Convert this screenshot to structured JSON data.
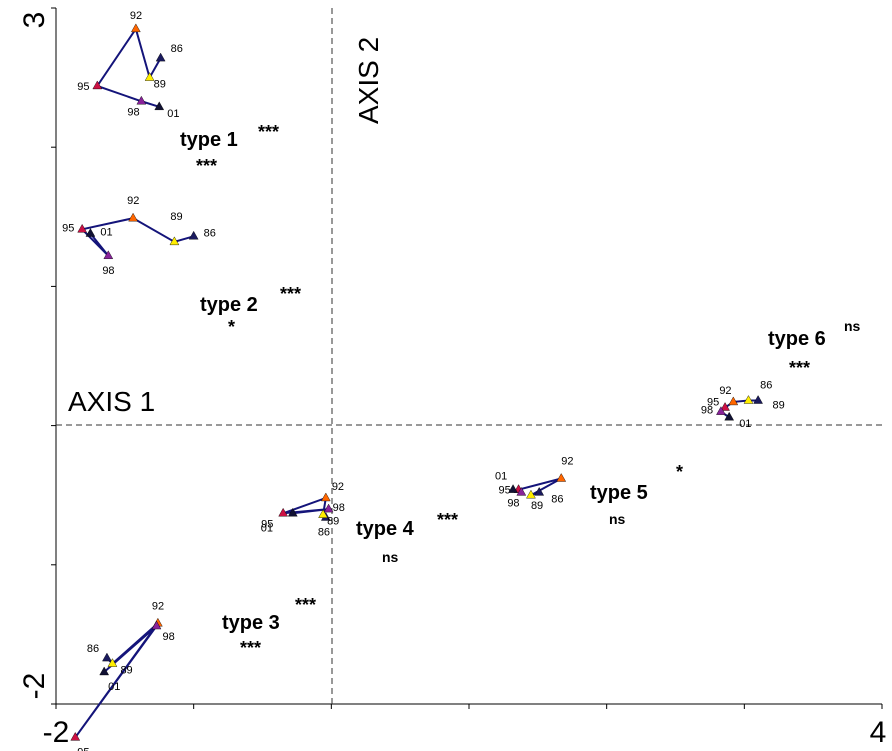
{
  "chart_data": {
    "type": "scatter",
    "title": "",
    "xlim": [
      -2,
      4
    ],
    "ylim": [
      -2,
      3
    ],
    "tick_labels": {
      "x_min": "-2",
      "x_max": "4",
      "y_min": "-2",
      "y_max": "3"
    },
    "axis_labels": {
      "axis1": "AXIS 1",
      "axis2": "AXIS 2"
    },
    "grid": false,
    "legend": "none",
    "colors": {
      "86": "#1a1a5e",
      "89": "#ffee00",
      "92": "#ff6600",
      "95": "#cc1144",
      "98": "#882299",
      "01": "#111133",
      "line": "#14147a"
    },
    "series": [
      {
        "points": [
          {
            "label": "86",
            "x": -1.24,
            "y": 2.64
          },
          {
            "label": "89",
            "x": -1.32,
            "y": 2.5
          },
          {
            "label": "92",
            "x": -1.42,
            "y": 2.85
          },
          {
            "label": "95",
            "x": -1.7,
            "y": 2.44
          },
          {
            "label": "98",
            "x": -1.38,
            "y": 2.33
          },
          {
            "label": "01",
            "x": -1.25,
            "y": 2.29
          }
        ],
        "name_text": "type 1",
        "sig1": "***",
        "sig2": "***"
      },
      {
        "points": [
          {
            "label": "86",
            "x": -1.0,
            "y": 1.36
          },
          {
            "label": "89",
            "x": -1.14,
            "y": 1.32
          },
          {
            "label": "92",
            "x": -1.44,
            "y": 1.49
          },
          {
            "label": "95",
            "x": -1.81,
            "y": 1.41
          },
          {
            "label": "98",
            "x": -1.62,
            "y": 1.22
          },
          {
            "label": "01",
            "x": -1.75,
            "y": 1.38
          }
        ],
        "name_text": "type 2",
        "sig1": "***",
        "sig2": "*"
      },
      {
        "points": [
          {
            "label": "86",
            "x": -1.63,
            "y": -1.67
          },
          {
            "label": "89",
            "x": -1.59,
            "y": -1.71
          },
          {
            "label": "92",
            "x": -1.26,
            "y": -1.42
          },
          {
            "label": "95",
            "x": -1.86,
            "y": -2.24
          },
          {
            "label": "98",
            "x": -1.27,
            "y": -1.44
          },
          {
            "label": "01",
            "x": -1.65,
            "y": -1.77
          }
        ],
        "name_text": "type 3",
        "sig1": "***",
        "sig2": "***"
      },
      {
        "points": [
          {
            "label": "86",
            "x": -0.04,
            "y": -0.66
          },
          {
            "label": "89",
            "x": -0.06,
            "y": -0.64
          },
          {
            "label": "92",
            "x": -0.04,
            "y": -0.52
          },
          {
            "label": "95",
            "x": -0.35,
            "y": -0.63
          },
          {
            "label": "98",
            "x": -0.02,
            "y": -0.6
          },
          {
            "label": "01",
            "x": -0.28,
            "y": -0.63
          }
        ],
        "name_text": "type 4",
        "sig1": "***",
        "sig2": "ns"
      },
      {
        "points": [
          {
            "label": "86",
            "x": 1.51,
            "y": -0.48
          },
          {
            "label": "89",
            "x": 1.45,
            "y": -0.5
          },
          {
            "label": "92",
            "x": 1.67,
            "y": -0.38
          },
          {
            "label": "95",
            "x": 1.36,
            "y": -0.46
          },
          {
            "label": "98",
            "x": 1.38,
            "y": -0.48
          },
          {
            "label": "01",
            "x": 1.32,
            "y": -0.46
          }
        ],
        "name_text": "type 5",
        "sig1": "*",
        "sig2": "ns"
      },
      {
        "points": [
          {
            "label": "86",
            "x": 3.1,
            "y": 0.18
          },
          {
            "label": "89",
            "x": 3.03,
            "y": 0.18
          },
          {
            "label": "92",
            "x": 2.92,
            "y": 0.17
          },
          {
            "label": "95",
            "x": 2.86,
            "y": 0.13
          },
          {
            "label": "98",
            "x": 2.83,
            "y": 0.1
          },
          {
            "label": "01",
            "x": 2.89,
            "y": 0.06
          }
        ],
        "name_text": "type 6",
        "sig1": "ns",
        "sig2": "***"
      }
    ]
  }
}
